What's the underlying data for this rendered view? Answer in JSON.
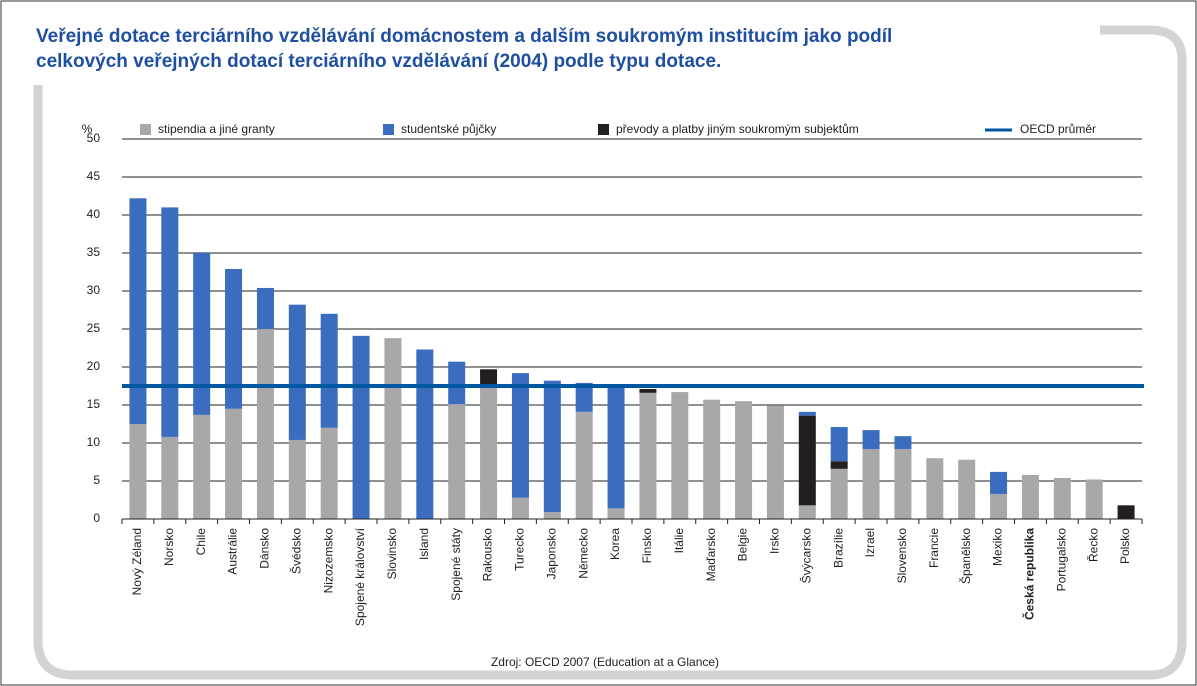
{
  "chart_data": {
    "type": "stacked_bar",
    "title": [
      "Veřejné dotace terciárního vzdělávání domácnostem a dalším soukromým institucím jako podíl",
      "celkových veřejných dotací terciárního vzdělávání (2004) podle typu dotace."
    ],
    "y_unit": "%",
    "source": "Zdroj: OECD 2007 (Education at a Glance)",
    "categories": [
      "Nový Zéland",
      "Norsko",
      "Chile",
      "Austrálie",
      "Dánsko",
      "Švédsko",
      "Nizozemsko",
      "Spojené království",
      "Slovinsko",
      "Island",
      "Spojené státy",
      "Rakousko",
      "Turecko",
      "Japonsko",
      "Německo",
      "Korea",
      "Finsko",
      "Itálie",
      "Maďarsko",
      "Belgie",
      "Irsko",
      "Švýcarsko",
      "Brazílie",
      "Izrael",
      "Slovensko",
      "Francie",
      "Španělsko",
      "Mexiko",
      "Česká republika",
      "Portugalsko",
      "Řecko",
      "Polsko"
    ],
    "highlight": "Česká republika",
    "series": [
      {
        "name": "stipendia a jiné granty",
        "color": "#a8a8a8",
        "values": [
          12.5,
          10.8,
          13.7,
          14.5,
          25.0,
          10.4,
          12.0,
          0,
          23.8,
          0,
          15.1,
          17.4,
          2.8,
          0.9,
          14.1,
          1.4,
          16.6,
          16.7,
          15.7,
          15.5,
          14.9,
          1.8,
          6.6,
          9.2,
          9.2,
          8.0,
          7.8,
          3.3,
          5.8,
          5.4,
          5.2,
          0
        ]
      },
      {
        "name": "studentské půjčky",
        "color": "#3a6cc0",
        "values": [
          29.7,
          30.2,
          21.3,
          18.4,
          5.4,
          17.8,
          15.0,
          24.1,
          0,
          22.3,
          5.6,
          0,
          16.4,
          17.3,
          3.8,
          16.2,
          0,
          0,
          0,
          0,
          0,
          0.5,
          4.5,
          2.5,
          1.7,
          0,
          0,
          2.9,
          0,
          0,
          0,
          0
        ]
      },
      {
        "name": "převody a platby jiným soukromým subjektům",
        "color": "#231f20",
        "values": [
          0,
          0,
          0,
          0,
          0,
          0,
          0,
          0,
          0,
          0,
          0,
          2.3,
          0,
          0,
          0,
          0,
          0.5,
          0,
          0,
          0,
          0,
          11.8,
          1.0,
          0,
          0,
          0,
          0,
          0,
          0,
          0,
          0,
          1.8
        ]
      }
    ],
    "oecd_average": {
      "name": "OECD průměr",
      "value": 17.5,
      "color": "#0058a3"
    },
    "ylim": [
      0,
      50
    ],
    "yticks": [
      0,
      5,
      10,
      15,
      20,
      25,
      30,
      35,
      40,
      45,
      50
    ],
    "grid": true
  }
}
